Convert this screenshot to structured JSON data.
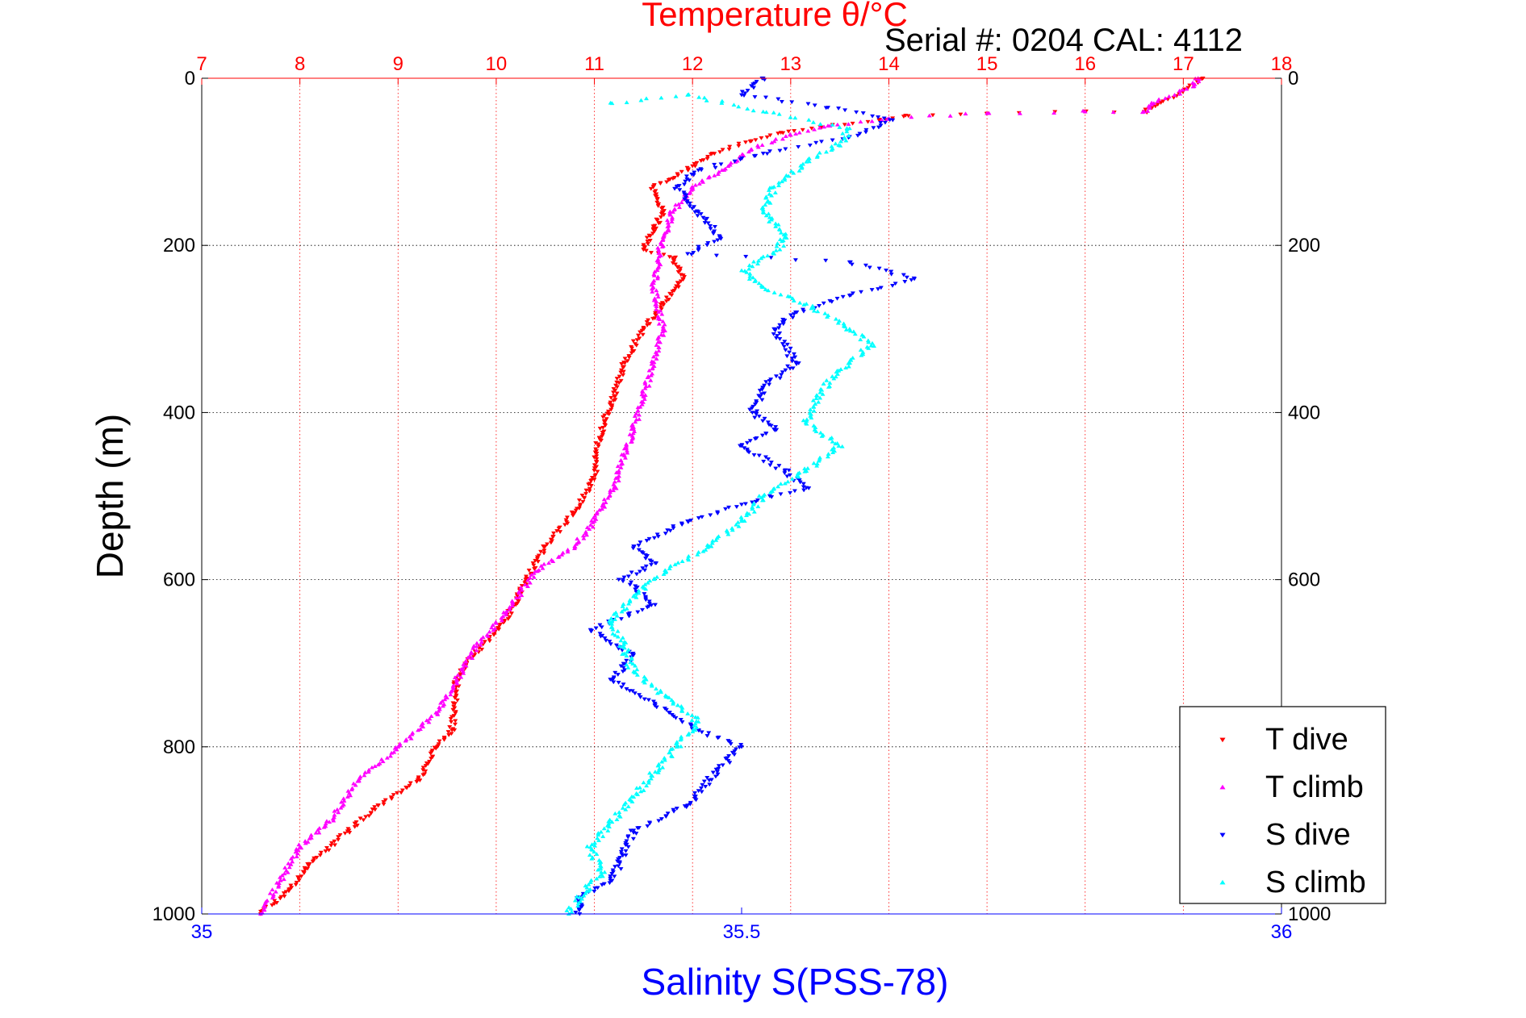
{
  "chart_data": {
    "type": "scatter",
    "title": "Temperature θ/°C",
    "subtitle": "Serial #: 0204  CAL: 4112",
    "ylabel": "Depth (m)",
    "xlabel": "Salinity S(PSS-78)",
    "ylim": [
      0,
      1000
    ],
    "y_reversed": true,
    "y_ticks": [
      0,
      200,
      400,
      600,
      800,
      1000
    ],
    "temperature_axis": {
      "position": "top",
      "range": [
        7,
        18
      ],
      "ticks": [
        7,
        8,
        9,
        10,
        11,
        12,
        13,
        14,
        15,
        16,
        17,
        18
      ],
      "color": "#ff0000"
    },
    "salinity_axis": {
      "position": "bottom",
      "range": [
        35,
        36
      ],
      "ticks": [
        35,
        35.5,
        36
      ],
      "color": "#0000ff"
    },
    "grid": "dotted",
    "legend_position": "bottom-right",
    "series": [
      {
        "name": "T dive",
        "axis": "temperature",
        "color": "#ff0000",
        "marker": "triangle-down",
        "points": [
          [
            17.2,
            0
          ],
          [
            17.0,
            15
          ],
          [
            16.6,
            40
          ],
          [
            16.0,
            40
          ],
          [
            15.0,
            42
          ],
          [
            14.2,
            45
          ],
          [
            13.9,
            50
          ],
          [
            13.3,
            58
          ],
          [
            12.9,
            65
          ],
          [
            12.6,
            75
          ],
          [
            12.2,
            90
          ],
          [
            12.0,
            105
          ],
          [
            11.8,
            120
          ],
          [
            11.6,
            130
          ],
          [
            11.7,
            160
          ],
          [
            11.6,
            180
          ],
          [
            11.5,
            205
          ],
          [
            11.8,
            215
          ],
          [
            11.9,
            240
          ],
          [
            11.7,
            270
          ],
          [
            11.5,
            300
          ],
          [
            11.3,
            340
          ],
          [
            11.2,
            380
          ],
          [
            11.1,
            410
          ],
          [
            11.05,
            430
          ],
          [
            11.0,
            480
          ],
          [
            10.8,
            520
          ],
          [
            10.5,
            560
          ],
          [
            10.3,
            600
          ],
          [
            10.2,
            630
          ],
          [
            10.0,
            660
          ],
          [
            9.7,
            700
          ],
          [
            9.6,
            720
          ],
          [
            9.55,
            780
          ],
          [
            9.4,
            800
          ],
          [
            9.2,
            840
          ],
          [
            8.8,
            870
          ],
          [
            8.5,
            900
          ],
          [
            8.1,
            940
          ],
          [
            7.9,
            970
          ],
          [
            7.6,
            1000
          ]
        ]
      },
      {
        "name": "T climb",
        "axis": "temperature",
        "color": "#ff00ff",
        "marker": "triangle-up",
        "points": [
          [
            17.15,
            0
          ],
          [
            17.1,
            10
          ],
          [
            16.7,
            30
          ],
          [
            16.6,
            40
          ],
          [
            16.0,
            40
          ],
          [
            15.0,
            42
          ],
          [
            14.0,
            48
          ],
          [
            13.4,
            57
          ],
          [
            13.0,
            68
          ],
          [
            12.6,
            85
          ],
          [
            12.3,
            110
          ],
          [
            12.0,
            130
          ],
          [
            11.8,
            160
          ],
          [
            11.7,
            190
          ],
          [
            11.65,
            220
          ],
          [
            11.6,
            250
          ],
          [
            11.7,
            300
          ],
          [
            11.6,
            340
          ],
          [
            11.5,
            380
          ],
          [
            11.4,
            420
          ],
          [
            11.3,
            450
          ],
          [
            11.2,
            490
          ],
          [
            11.0,
            530
          ],
          [
            10.8,
            560
          ],
          [
            10.4,
            590
          ],
          [
            10.1,
            640
          ],
          [
            9.8,
            680
          ],
          [
            9.6,
            720
          ],
          [
            9.4,
            760
          ],
          [
            9.0,
            800
          ],
          [
            8.6,
            840
          ],
          [
            8.3,
            890
          ],
          [
            8.0,
            920
          ],
          [
            7.8,
            960
          ],
          [
            7.6,
            1000
          ]
        ]
      },
      {
        "name": "S dive",
        "axis": "salinity",
        "color": "#0000ff",
        "marker": "triangle-down",
        "points": [
          [
            35.52,
            0
          ],
          [
            35.5,
            20
          ],
          [
            35.58,
            35
          ],
          [
            35.64,
            50
          ],
          [
            35.6,
            70
          ],
          [
            35.52,
            90
          ],
          [
            35.46,
            110
          ],
          [
            35.44,
            130
          ],
          [
            35.46,
            160
          ],
          [
            35.48,
            190
          ],
          [
            35.45,
            210
          ],
          [
            35.6,
            220
          ],
          [
            35.66,
            240
          ],
          [
            35.6,
            260
          ],
          [
            35.55,
            280
          ],
          [
            35.53,
            300
          ],
          [
            35.55,
            340
          ],
          [
            35.52,
            370
          ],
          [
            35.51,
            400
          ],
          [
            35.53,
            420
          ],
          [
            35.5,
            440
          ],
          [
            35.54,
            470
          ],
          [
            35.56,
            490
          ],
          [
            35.5,
            510
          ],
          [
            35.45,
            530
          ],
          [
            35.4,
            560
          ],
          [
            35.42,
            580
          ],
          [
            35.39,
            600
          ],
          [
            35.42,
            630
          ],
          [
            35.36,
            660
          ],
          [
            35.4,
            690
          ],
          [
            35.38,
            720
          ],
          [
            35.42,
            750
          ],
          [
            35.46,
            780
          ],
          [
            35.5,
            800
          ],
          [
            35.47,
            840
          ],
          [
            35.45,
            870
          ],
          [
            35.4,
            900
          ],
          [
            35.39,
            930
          ],
          [
            35.38,
            960
          ],
          [
            35.35,
            980
          ],
          [
            35.35,
            1000
          ]
        ]
      },
      {
        "name": "S climb",
        "axis": "salinity",
        "color": "#00ffff",
        "marker": "triangle-up",
        "points": [
          [
            35.38,
            30
          ],
          [
            35.45,
            20
          ],
          [
            35.52,
            40
          ],
          [
            35.6,
            60
          ],
          [
            35.59,
            80
          ],
          [
            35.56,
            100
          ],
          [
            35.53,
            130
          ],
          [
            35.52,
            160
          ],
          [
            35.54,
            190
          ],
          [
            35.53,
            210
          ],
          [
            35.5,
            230
          ],
          [
            35.52,
            250
          ],
          [
            35.56,
            270
          ],
          [
            35.6,
            300
          ],
          [
            35.62,
            320
          ],
          [
            35.59,
            350
          ],
          [
            35.57,
            380
          ],
          [
            35.56,
            410
          ],
          [
            35.59,
            440
          ],
          [
            35.56,
            470
          ],
          [
            35.52,
            500
          ],
          [
            35.5,
            530
          ],
          [
            35.47,
            560
          ],
          [
            35.43,
            590
          ],
          [
            35.4,
            620
          ],
          [
            35.38,
            650
          ],
          [
            35.39,
            680
          ],
          [
            35.4,
            710
          ],
          [
            35.43,
            740
          ],
          [
            35.46,
            770
          ],
          [
            35.44,
            800
          ],
          [
            35.42,
            830
          ],
          [
            35.4,
            860
          ],
          [
            35.38,
            890
          ],
          [
            35.36,
            920
          ],
          [
            35.37,
            950
          ],
          [
            35.35,
            980
          ],
          [
            35.34,
            1000
          ]
        ]
      }
    ]
  },
  "page": {
    "title": "Temperature θ/°C",
    "serial": "Serial #: 0204  CAL: 4112",
    "ylabel": "Depth (m)",
    "xlabel": "Salinity S(PSS-78)",
    "legend": [
      "T dive",
      "T climb",
      "S dive",
      "S climb"
    ]
  }
}
